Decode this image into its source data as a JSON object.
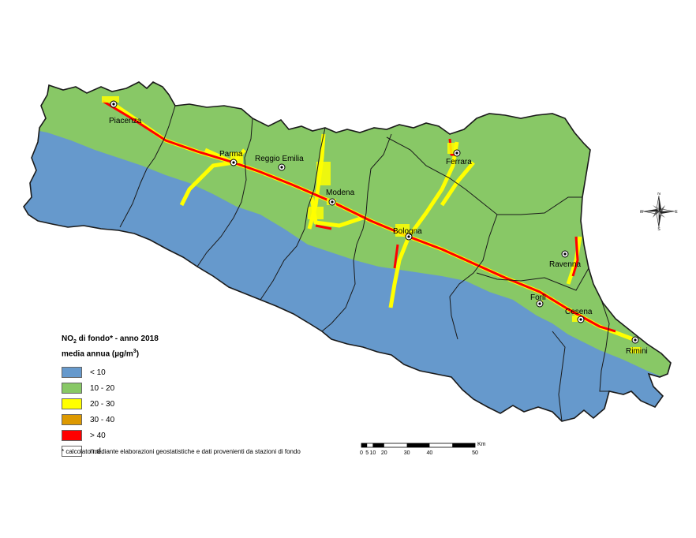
{
  "legend": {
    "title_prefix": "NO",
    "title_sub": "2",
    "title_suffix": " di fondo* - anno 2018",
    "subtitle_prefix": "media annua (µg/m",
    "subtitle_sup": "3",
    "subtitle_suffix": ")",
    "items": [
      {
        "label": "< 10",
        "color": "#6699cc"
      },
      {
        "label": "10 - 20",
        "color": "#88c866"
      },
      {
        "label": "20 - 30",
        "color": "#ffff00"
      },
      {
        "label": "30 - 40",
        "color": "#dd9900"
      },
      {
        "label": "> 40",
        "color": "#ff0000"
      },
      {
        "label": "n.d.",
        "color": "#ffffff"
      }
    ]
  },
  "footnote": "* calcolato mediante elaborazioni geostatistiche e dati provenienti da stazioni di fondo",
  "scalebar": {
    "unit": "Km",
    "ticks": [
      "0",
      "5",
      "10",
      "20",
      "30",
      "40",
      "50"
    ]
  },
  "compass": {
    "n": "N",
    "s": "S",
    "e": "E",
    "w": "W"
  },
  "cities": [
    {
      "name": "Piacenza"
    },
    {
      "name": "Parma"
    },
    {
      "name": "Reggio Emilia"
    },
    {
      "name": "Modena"
    },
    {
      "name": "Ferrara"
    },
    {
      "name": "Bologna"
    },
    {
      "name": "Ravenna"
    },
    {
      "name": "Forlì"
    },
    {
      "name": "Cesena"
    },
    {
      "name": "Rimini"
    }
  ],
  "colors": {
    "low": "#6699cc",
    "mid": "#88c866",
    "high": "#ffff00",
    "vhigh": "#dd9900",
    "max": "#ff0000",
    "border": "#1a1a1a"
  }
}
